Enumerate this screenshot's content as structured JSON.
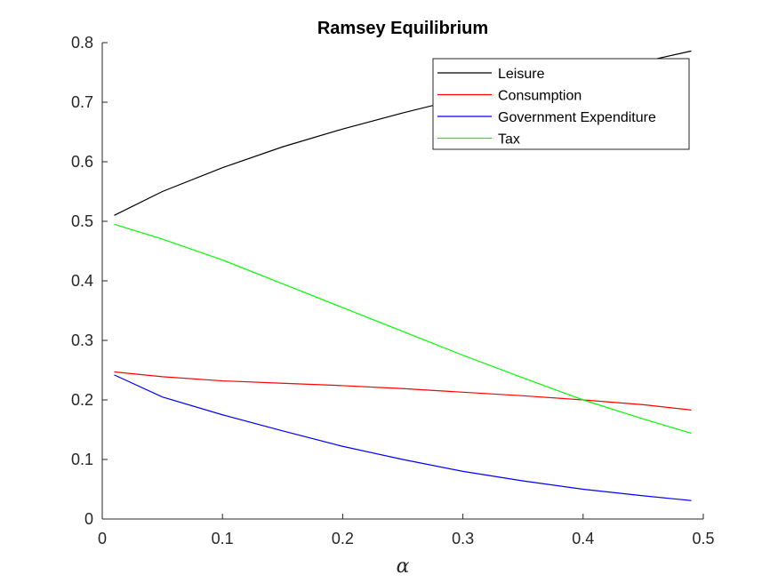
{
  "chart_data": {
    "type": "line",
    "title": "Ramsey Equilibrium",
    "xlabel": "α",
    "ylabel": "",
    "xlim": [
      0,
      0.5
    ],
    "ylim": [
      0,
      0.8
    ],
    "x_ticks": [
      0,
      0.1,
      0.2,
      0.3,
      0.4,
      0.5
    ],
    "x_tick_labels": [
      "0",
      "0.1",
      "0.2",
      "0.3",
      "0.4",
      "0.5"
    ],
    "y_ticks": [
      0,
      0.1,
      0.2,
      0.3,
      0.4,
      0.5,
      0.6,
      0.7,
      0.8
    ],
    "y_tick_labels": [
      "0",
      "0.1",
      "0.2",
      "0.3",
      "0.4",
      "0.5",
      "0.6",
      "0.7",
      "0.8"
    ],
    "grid": false,
    "legend_position": "top-right",
    "x": [
      0.01,
      0.05,
      0.1,
      0.15,
      0.2,
      0.25,
      0.3,
      0.35,
      0.4,
      0.45,
      0.49
    ],
    "series": [
      {
        "name": "Leisure",
        "color": "#000000",
        "values": [
          0.51,
          0.55,
          0.59,
          0.625,
          0.655,
          0.682,
          0.707,
          0.729,
          0.749,
          0.768,
          0.786
        ]
      },
      {
        "name": "Consumption",
        "color": "#ff0000",
        "values": [
          0.247,
          0.239,
          0.232,
          0.228,
          0.224,
          0.219,
          0.213,
          0.207,
          0.2,
          0.192,
          0.183
        ]
      },
      {
        "name": "Government Expenditure",
        "color": "#0000ff",
        "values": [
          0.242,
          0.205,
          0.175,
          0.148,
          0.122,
          0.1,
          0.08,
          0.064,
          0.05,
          0.039,
          0.031
        ]
      },
      {
        "name": "Tax",
        "color": "#00ff00",
        "values": [
          0.495,
          0.47,
          0.435,
          0.395,
          0.355,
          0.315,
          0.275,
          0.237,
          0.2,
          0.168,
          0.144
        ]
      }
    ]
  }
}
